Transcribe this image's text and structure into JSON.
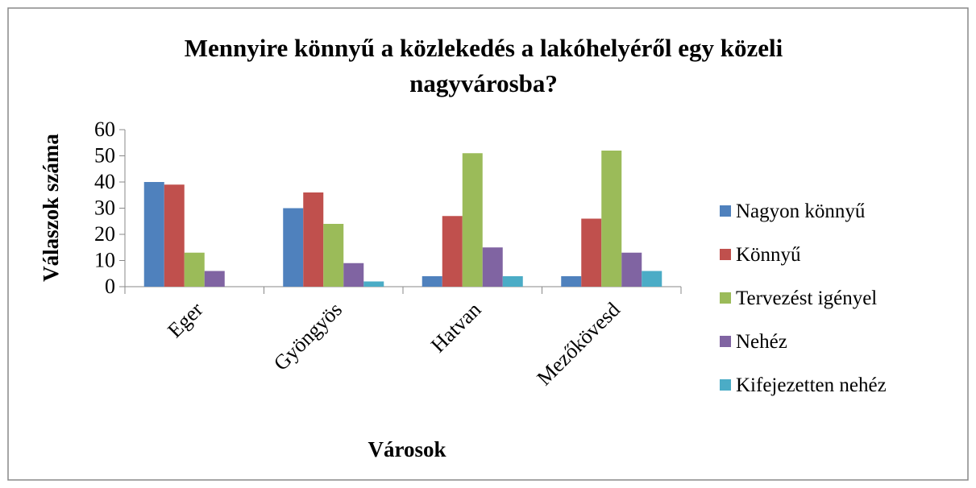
{
  "chart_data": {
    "type": "bar",
    "title": "Mennyire könnyű a közlekedés a lakóhelyéről egy közeli nagyvárosba?",
    "x_label": "Városok",
    "y_label": "Válaszok száma",
    "categories": [
      "Eger",
      "Gyöngyös",
      "Hatvan",
      "Mezőkövesd"
    ],
    "series": [
      {
        "name": "Nagyon könnyű",
        "color": "#4f81bd",
        "values": [
          40,
          30,
          4,
          4
        ]
      },
      {
        "name": "Könnyű",
        "color": "#c0504d",
        "values": [
          39,
          36,
          27,
          26
        ]
      },
      {
        "name": "Tervezést igényel",
        "color": "#9bbb59",
        "values": [
          13,
          24,
          51,
          52
        ]
      },
      {
        "name": "Nehéz",
        "color": "#8064a2",
        "values": [
          6,
          9,
          15,
          13
        ]
      },
      {
        "name": "Kifejezetten nehéz",
        "color": "#4bacc6",
        "values": [
          0,
          2,
          4,
          6
        ]
      }
    ],
    "ylim": [
      0,
      60
    ],
    "yticks": [
      0,
      10,
      20,
      30,
      40,
      50,
      60
    ],
    "grid": false,
    "legend": "right"
  }
}
